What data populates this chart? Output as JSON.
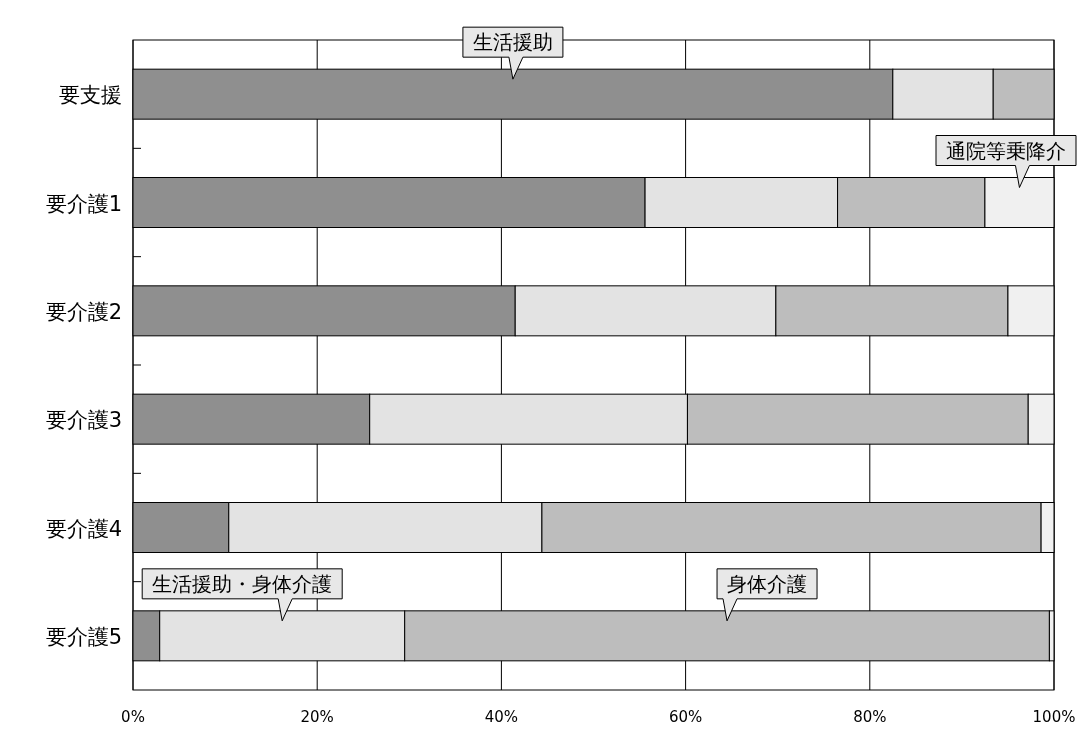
{
  "chart_data": {
    "type": "bar",
    "orientation": "horizontal",
    "stacked": true,
    "categories": [
      "要支援",
      "要介護1",
      "要介護2",
      "要介護3",
      "要介護4",
      "要介護5"
    ],
    "series": [
      {
        "name": "生活援助",
        "color": "#8f8f8f",
        "values": [
          82.5,
          55.6,
          41.5,
          25.7,
          10.4,
          2.9
        ]
      },
      {
        "name": "生活援助・身体介護",
        "color": "#e3e3e3",
        "values": [
          10.9,
          20.9,
          28.3,
          34.5,
          34.0,
          26.6
        ]
      },
      {
        "name": "身体介護",
        "color": "#bdbdbd",
        "values": [
          6.6,
          16.0,
          25.2,
          37.0,
          54.2,
          70.0
        ]
      },
      {
        "name": "通院等乗降介",
        "color": "#f0f0f0",
        "values": [
          0,
          7.5,
          5.0,
          2.8,
          1.4,
          0.5
        ]
      }
    ],
    "xlim": [
      0,
      100
    ],
    "xticks": [
      {
        "value": 0,
        "label": "0%"
      },
      {
        "value": 20,
        "label": "20%"
      },
      {
        "value": 40,
        "label": "40%"
      },
      {
        "value": 60,
        "label": "60%"
      },
      {
        "value": 80,
        "label": "80%"
      },
      {
        "value": 100,
        "label": "100%"
      }
    ],
    "grid": "x"
  }
}
